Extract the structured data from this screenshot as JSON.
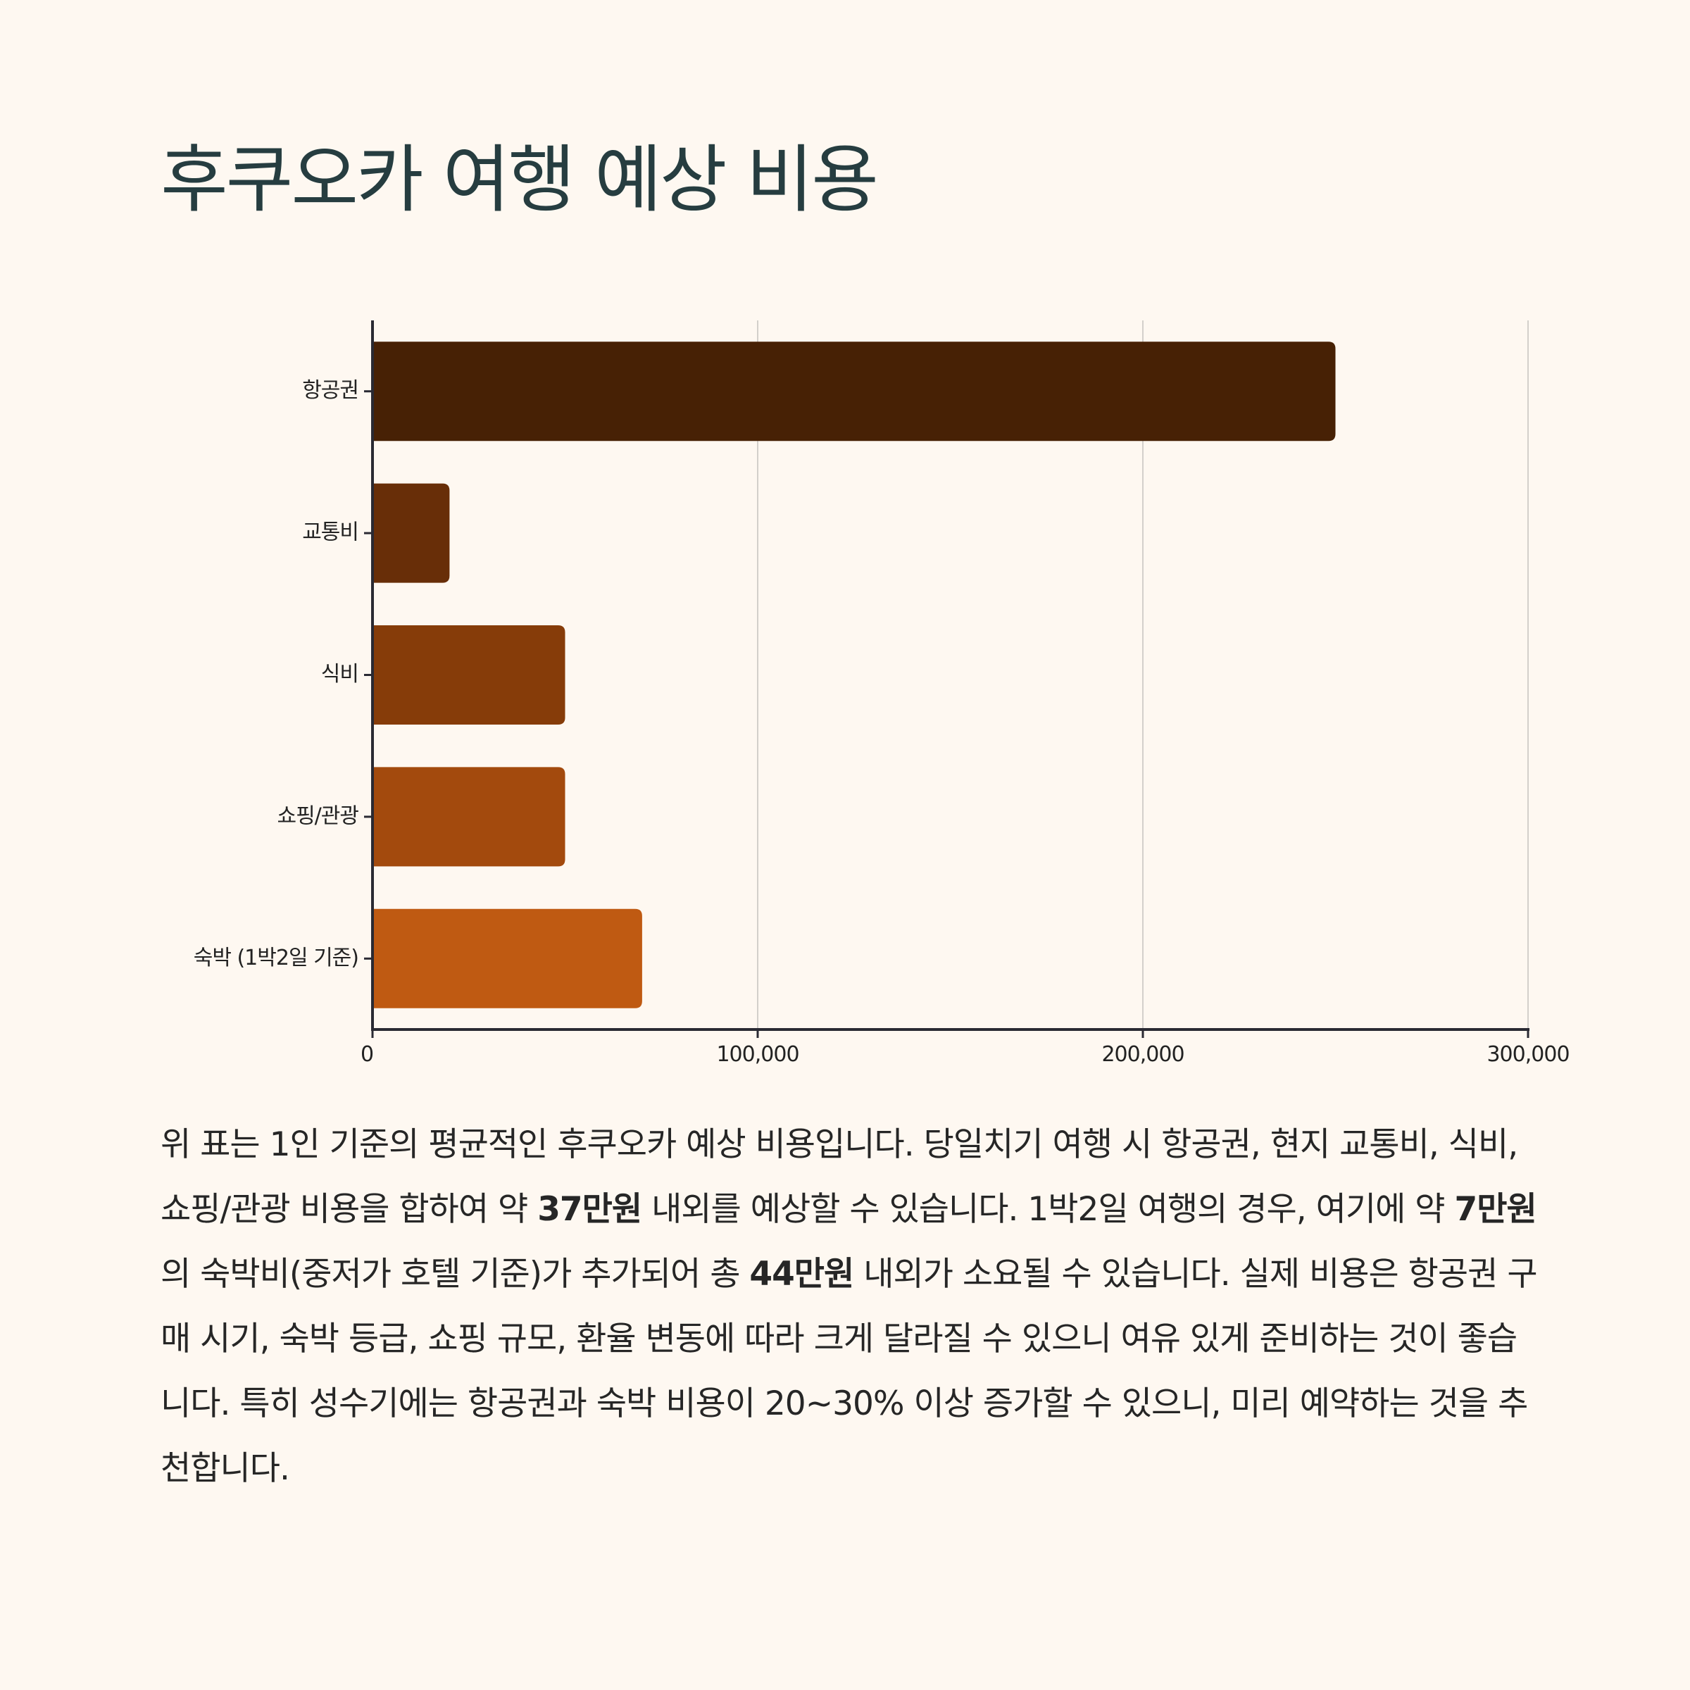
{
  "title": "후쿠오카 여행 예상 비용",
  "colors": {
    "background": "#fef8f1",
    "title": "#263d40",
    "axis": "#2a2a33",
    "grid": "#d3d0cb",
    "bars": [
      "#472105",
      "#682e08",
      "#863c09",
      "#a34a0d",
      "#bf5a12"
    ]
  },
  "chart_data": {
    "type": "bar",
    "orientation": "horizontal",
    "categories": [
      "항공권",
      "교통비",
      "식비",
      "쇼핑/관광",
      "숙박 (1박2일 기준)"
    ],
    "values": [
      250000,
      20000,
      50000,
      50000,
      70000
    ],
    "x_ticks": [
      0,
      100000,
      200000,
      300000
    ],
    "x_tick_labels": [
      "0",
      "100,000",
      "200,000",
      "300,000"
    ],
    "xlim": [
      0,
      300000
    ],
    "grid": "vertical",
    "legend": "none"
  },
  "description": {
    "parts": [
      "위 표는 1인 기준의 평균적인 후쿠오카 예상 비용입니다. 당일치기 여행 시 항공권, 현지 교통비, 식비, 쇼핑/관광 비용을 합하여 약 ",
      "37만원",
      " 내외를 예상할 수 있습니다. 1박2일 여행의 경우, 여기에 약 ",
      "7만원",
      "의 숙박비(중저가 호텔 기준)가 추가되어 총 ",
      "44만원",
      " 내외가 소요될 수 있습니다. 실제 비용은 항공권 구매 시기, 숙박 등급, 쇼핑 규모, 환율 변동에 따라 크게 달라질 수 있으니 여유 있게 준비하는 것이 좋습니다. 특히 성수기에는 항공권과 숙박 비용이 20~30% 이상 증가할 수 있으니, 미리 예약하는 것을 추천합니다."
    ]
  }
}
